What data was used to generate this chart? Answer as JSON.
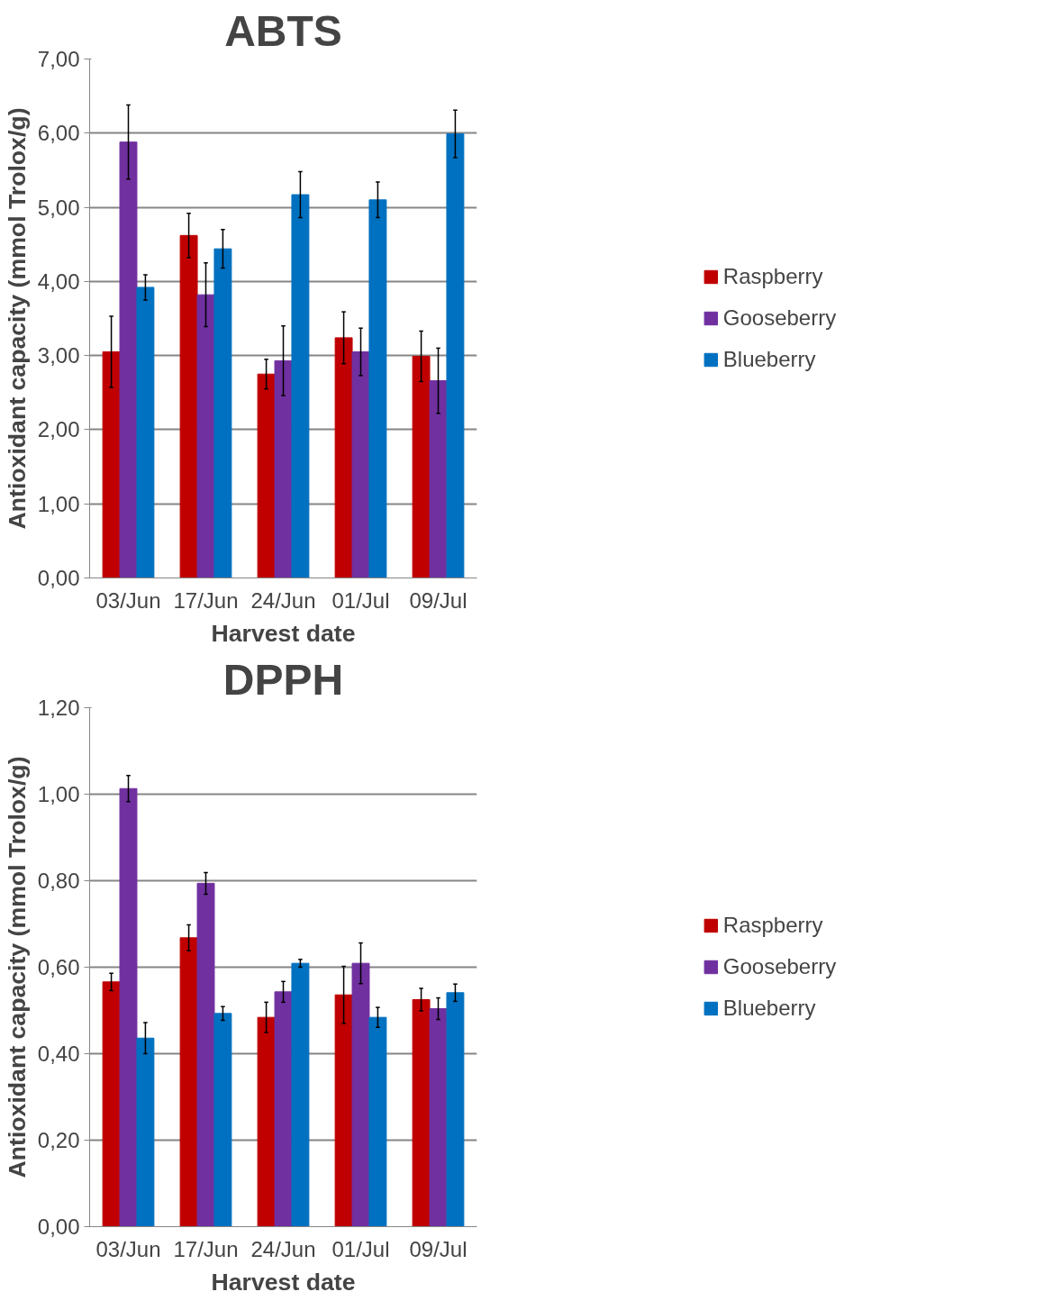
{
  "chart_data": [
    {
      "type": "bar",
      "title": "ABTS",
      "xlabel": "Harvest date",
      "ylabel": "Antioxidant capacity (mmol Trolox/g)",
      "categories": [
        "03/Jun",
        "17/Jun",
        "24/Jun",
        "01/Jul",
        "09/Jul"
      ],
      "series": [
        {
          "name": "Raspberry",
          "color": "#c00000",
          "values": [
            3.05,
            4.62,
            2.75,
            3.24,
            2.99
          ],
          "errors": [
            0.48,
            0.3,
            0.2,
            0.35,
            0.34
          ]
        },
        {
          "name": "Gooseberry",
          "color": "#7030a0",
          "values": [
            5.88,
            3.82,
            2.93,
            3.05,
            2.66
          ],
          "errors": [
            0.5,
            0.43,
            0.47,
            0.32,
            0.44
          ]
        },
        {
          "name": "Blueberry",
          "color": "#0070c0",
          "values": [
            3.92,
            4.44,
            5.17,
            5.1,
            5.99
          ],
          "errors": [
            0.17,
            0.26,
            0.31,
            0.24,
            0.32
          ]
        }
      ],
      "ylim": [
        0,
        7
      ],
      "yticks": [
        {
          "value": 0,
          "label": "0,00"
        },
        {
          "value": 1,
          "label": "1,00"
        },
        {
          "value": 2,
          "label": "2,00"
        },
        {
          "value": 3,
          "label": "3,00"
        },
        {
          "value": 4,
          "label": "4,00"
        },
        {
          "value": 5,
          "label": "5,00"
        },
        {
          "value": 6,
          "label": "6,00"
        },
        {
          "value": 7,
          "label": "7,00"
        }
      ],
      "grid": "y",
      "legend": "right"
    },
    {
      "type": "bar",
      "title": "DPPH",
      "xlabel": "Harvest date",
      "ylabel": "Antioxidant capacity (mmol Trolox/g)",
      "categories": [
        "03/Jun",
        "17/Jun",
        "24/Jun",
        "01/Jul",
        "09/Jul"
      ],
      "series": [
        {
          "name": "Raspberry",
          "color": "#c00000",
          "values": [
            0.566,
            0.668,
            0.484,
            0.536,
            0.525
          ],
          "errors": [
            0.02,
            0.03,
            0.035,
            0.066,
            0.026
          ]
        },
        {
          "name": "Gooseberry",
          "color": "#7030a0",
          "values": [
            1.013,
            0.794,
            0.543,
            0.609,
            0.504
          ],
          "errors": [
            0.03,
            0.025,
            0.024,
            0.047,
            0.025
          ]
        },
        {
          "name": "Blueberry",
          "color": "#0070c0",
          "values": [
            0.436,
            0.493,
            0.609,
            0.484,
            0.541
          ],
          "errors": [
            0.036,
            0.016,
            0.009,
            0.023,
            0.02
          ]
        }
      ],
      "ylim": [
        0,
        1.2
      ],
      "yticks": [
        {
          "value": 0,
          "label": "0,00"
        },
        {
          "value": 0.2,
          "label": "0,20"
        },
        {
          "value": 0.4,
          "label": "0,40"
        },
        {
          "value": 0.6,
          "label": "0,60"
        },
        {
          "value": 0.8,
          "label": "0,80"
        },
        {
          "value": 1.0,
          "label": "1,00"
        },
        {
          "value": 1.2,
          "label": "1,20"
        }
      ],
      "grid": "y",
      "legend": "right"
    }
  ]
}
